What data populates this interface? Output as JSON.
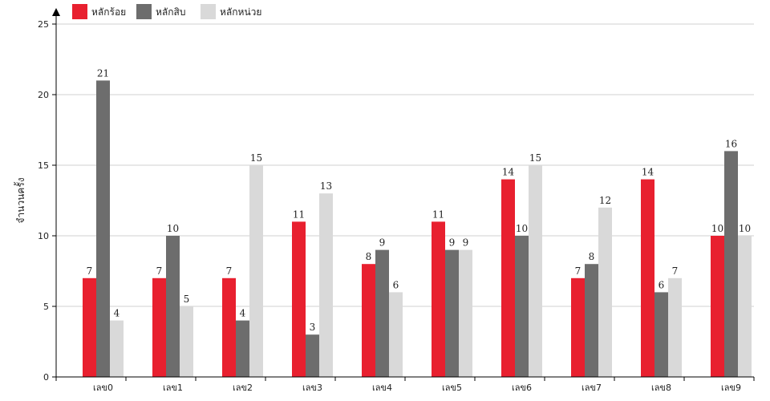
{
  "chart_data": {
    "type": "bar",
    "title": "",
    "xlabel": "",
    "ylabel": "จำนวนครั้ง",
    "ylim": [
      0,
      25
    ],
    "yticks": [
      0,
      5,
      10,
      15,
      20,
      25
    ],
    "grid": true,
    "legend_position": "top-left",
    "categories": [
      "เลข0",
      "เลข1",
      "เลข2",
      "เลข3",
      "เลข4",
      "เลข5",
      "เลข6",
      "เลข7",
      "เลข8",
      "เลข9"
    ],
    "series": [
      {
        "name": "หลักร้อย",
        "color": "#e8202f",
        "values": [
          7,
          7,
          7,
          11,
          8,
          11,
          14,
          7,
          14,
          10
        ]
      },
      {
        "name": "หลักสิบ",
        "color": "#6d6d6d",
        "values": [
          21,
          10,
          4,
          3,
          9,
          9,
          10,
          8,
          6,
          16
        ]
      },
      {
        "name": "หลักหน่วย",
        "color": "#d9d9d9",
        "values": [
          4,
          5,
          15,
          13,
          6,
          9,
          15,
          12,
          7,
          10
        ]
      }
    ]
  }
}
